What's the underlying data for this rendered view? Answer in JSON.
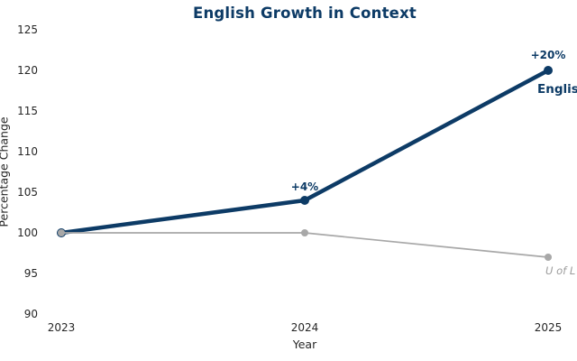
{
  "title": "English Growth in Context",
  "colors": {
    "navy": "#0d3b66",
    "gray": "#a8a8a8",
    "gray_text": "#9c9c9c",
    "tick_text": "#262626"
  },
  "chart_data": {
    "type": "line",
    "title": "English Growth in Context",
    "xlabel": "Year",
    "ylabel": "Percentage Change",
    "categories": [
      "2023",
      "2024",
      "2025"
    ],
    "yticks": [
      90,
      95,
      100,
      105,
      110,
      115,
      120,
      125
    ],
    "ylim": [
      88,
      127
    ],
    "grid": false,
    "legend_position": "inline-end-labels",
    "series": [
      {
        "name": "English",
        "label": "English",
        "color": "#0d3b66",
        "values": [
          100,
          104,
          120
        ],
        "annotations": [
          "",
          "+4%",
          "+20%"
        ]
      },
      {
        "name": "U of L",
        "label": "U of L",
        "color": "#a8a8a8",
        "values": [
          100,
          100,
          97
        ],
        "annotations": [
          "",
          "",
          ""
        ]
      }
    ]
  }
}
